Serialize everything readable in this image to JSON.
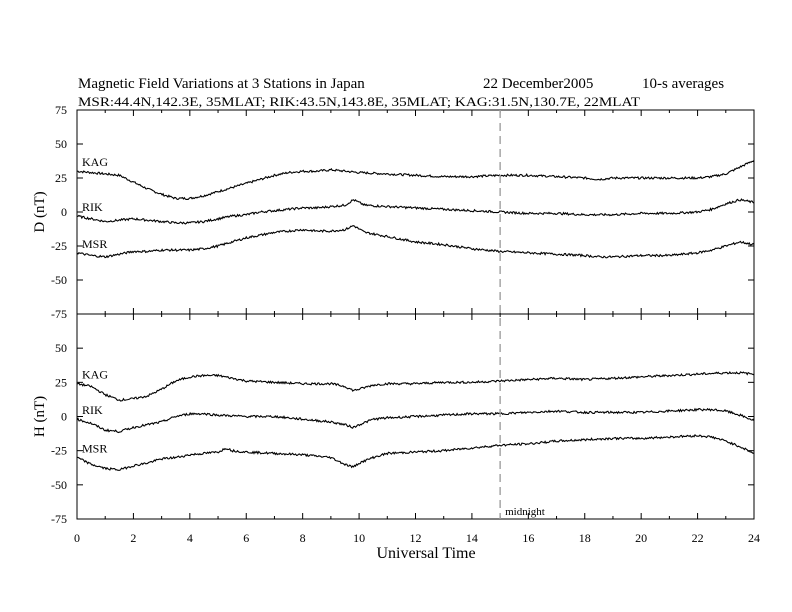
{
  "chart_data": {
    "type": "line",
    "title": {
      "main": "Magnetic Field Variations at 3 Stations in Japan",
      "date": "22 December2005",
      "averaging": "10-s averages"
    },
    "subtitle": "MSR:44.4N,142.3E, 35MLAT;  RIK:43.5N,143.8E, 35MLAT;  KAG:31.5N,130.7E, 22MLAT",
    "xlabel": "Universal Time",
    "xlim": [
      0,
      24
    ],
    "xticks": [
      "0",
      "2",
      "4",
      "6",
      "8",
      "10",
      "12",
      "14",
      "16",
      "18",
      "20",
      "22",
      "24"
    ],
    "midnight_marker": {
      "x": 15,
      "label": "midnight",
      "color": "#a0a0a0"
    },
    "line_color": "#000000",
    "panels": [
      {
        "ylabel": "D (nT)",
        "ylim": [
          -75,
          75
        ],
        "yticks": [
          "75",
          "50",
          "25",
          "0",
          "-25",
          "-50",
          "-75"
        ],
        "series": [
          {
            "name": "KAG",
            "x": [
              0,
              0.5,
              1,
              1.5,
              2,
              2.5,
              3,
              3.5,
              4,
              4.5,
              5,
              5.5,
              6,
              6.5,
              7,
              7.5,
              8,
              8.5,
              9,
              9.5,
              10,
              11,
              12,
              13,
              14,
              15,
              16,
              17,
              18,
              18.5,
              19,
              20,
              21,
              22,
              22.5,
              23,
              23.5,
              24
            ],
            "y": [
              30,
              29,
              28,
              27,
              22,
              17,
              13,
              10,
              10,
              12,
              15,
              18,
              21,
              24,
              27,
              29,
              30,
              30,
              31,
              30,
              29,
              28,
              27,
              26,
              26,
              27,
              27,
              26,
              25,
              24,
              25,
              25,
              25,
              25,
              26,
              28,
              33,
              38
            ]
          },
          {
            "name": "RIK",
            "x": [
              0,
              0.5,
              1,
              1.5,
              2,
              2.5,
              3,
              3.5,
              4,
              4.5,
              5,
              5.5,
              6,
              6.5,
              7,
              7.5,
              8,
              8.5,
              9,
              9.5,
              9.8,
              10.2,
              11,
              12,
              13,
              14,
              15,
              16,
              17,
              18,
              19,
              20,
              21,
              22,
              22.5,
              23,
              23.5,
              24
            ],
            "y": [
              -3,
              -5,
              -7,
              -6,
              -5,
              -6,
              -7,
              -8,
              -8,
              -7,
              -5,
              -3,
              -2,
              0,
              1,
              2,
              3,
              3,
              4,
              5,
              9,
              5,
              4,
              3,
              2,
              1,
              0,
              -1,
              -1,
              -2,
              -2,
              -1,
              -1,
              0,
              2,
              6,
              9,
              7
            ]
          },
          {
            "name": "MSR",
            "x": [
              0,
              0.5,
              1,
              1.5,
              2,
              2.5,
              3,
              3.5,
              4,
              4.5,
              5,
              5.5,
              6,
              6.5,
              7,
              7.5,
              8,
              8.5,
              9,
              9.5,
              9.8,
              10.2,
              11,
              12,
              13,
              14,
              15,
              16,
              17,
              18,
              18.5,
              19,
              20,
              21,
              22,
              22.5,
              23,
              23.5,
              24
            ],
            "y": [
              -30,
              -32,
              -33,
              -31,
              -29,
              -29,
              -28,
              -28,
              -28,
              -27,
              -25,
              -22,
              -19,
              -17,
              -15,
              -14,
              -13,
              -14,
              -14,
              -13,
              -10,
              -15,
              -18,
              -22,
              -24,
              -27,
              -29,
              -30,
              -31,
              -32,
              -33,
              -33,
              -32,
              -32,
              -30,
              -28,
              -25,
              -22,
              -24
            ]
          }
        ]
      },
      {
        "ylabel": "H (nT)",
        "ylim": [
          -75,
          75
        ],
        "yticks": [
          "75",
          "50",
          "25",
          "0",
          "-25",
          "-50",
          "-75"
        ],
        "series": [
          {
            "name": "KAG",
            "x": [
              0,
              0.5,
              1,
              1.5,
              2,
              2.5,
              3,
              3.5,
              4,
              4.5,
              5,
              5.5,
              6,
              7,
              8,
              9,
              9.5,
              9.8,
              10,
              10.5,
              11,
              12,
              13,
              14,
              15,
              16,
              17,
              18,
              19,
              20,
              21,
              22,
              23,
              23.5,
              24
            ],
            "y": [
              24,
              22,
              16,
              12,
              13,
              15,
              20,
              26,
              29,
              30,
              30,
              28,
              26,
              25,
              24,
              24,
              22,
              19,
              20,
              23,
              24,
              24,
              25,
              25,
              26,
              27,
              28,
              27,
              28,
              29,
              30,
              31,
              32,
              32,
              31
            ]
          },
          {
            "name": "RIK",
            "x": [
              0,
              0.5,
              1,
              1.5,
              2,
              2.5,
              3,
              3.5,
              4,
              4.5,
              5,
              6,
              7,
              8,
              8.5,
              9,
              9.5,
              9.8,
              10,
              10.5,
              11,
              12,
              13,
              14,
              15,
              16,
              17,
              18,
              19,
              20,
              21,
              22,
              22.5,
              23,
              23.5,
              24
            ],
            "y": [
              -2,
              -5,
              -10,
              -11,
              -8,
              -6,
              -4,
              0,
              2,
              2,
              1,
              0,
              0,
              -2,
              -3,
              -4,
              -6,
              -8,
              -6,
              -2,
              -1,
              0,
              1,
              2,
              2,
              3,
              4,
              3,
              3,
              3,
              4,
              5,
              5,
              4,
              1,
              -3
            ]
          },
          {
            "name": "MSR",
            "x": [
              0,
              0.5,
              1,
              1.5,
              2,
              2.5,
              3,
              3.5,
              4,
              4.5,
              5,
              5.3,
              5.5,
              6,
              7,
              8,
              8.5,
              9,
              9.5,
              9.8,
              10,
              10.5,
              11,
              12,
              13,
              14,
              15,
              16,
              17,
              18,
              19,
              20,
              21,
              22,
              22.5,
              23,
              23.5,
              24
            ],
            "y": [
              -30,
              -35,
              -38,
              -39,
              -36,
              -34,
              -31,
              -30,
              -28,
              -27,
              -26,
              -23,
              -25,
              -26,
              -27,
              -28,
              -29,
              -30,
              -35,
              -37,
              -34,
              -30,
              -27,
              -26,
              -25,
              -23,
              -21,
              -20,
              -18,
              -17,
              -16,
              -16,
              -15,
              -14,
              -15,
              -18,
              -22,
              -27
            ]
          }
        ]
      }
    ]
  }
}
